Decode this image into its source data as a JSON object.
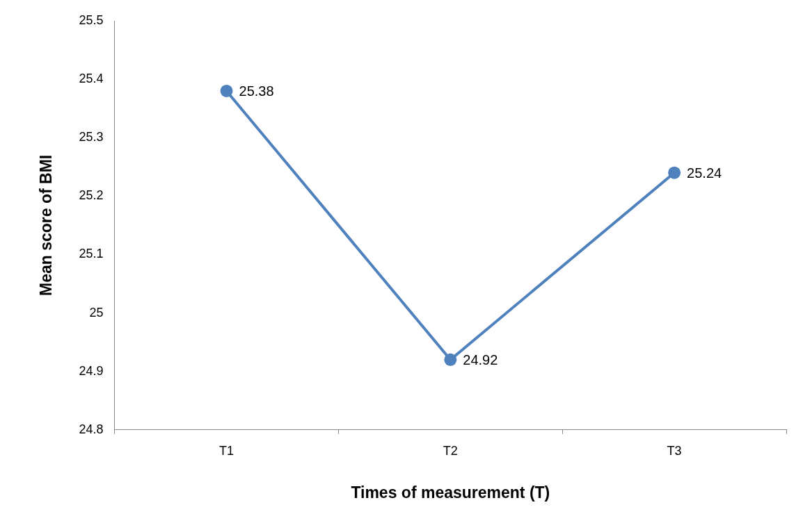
{
  "chart_data": {
    "type": "line",
    "xlabel": "Times of measurement (T)",
    "ylabel": "Mean score of BMI",
    "categories": [
      "T1",
      "T2",
      "T3"
    ],
    "series": [
      {
        "color": "#4f81bd",
        "values": [
          25.38,
          24.92,
          25.24
        ]
      }
    ],
    "ylim": [
      24.8,
      25.5
    ],
    "yticks": [
      24.8,
      24.9,
      25,
      25.1,
      25.2,
      25.3,
      25.4,
      25.5
    ],
    "data_labels": true,
    "marker": "circle"
  }
}
